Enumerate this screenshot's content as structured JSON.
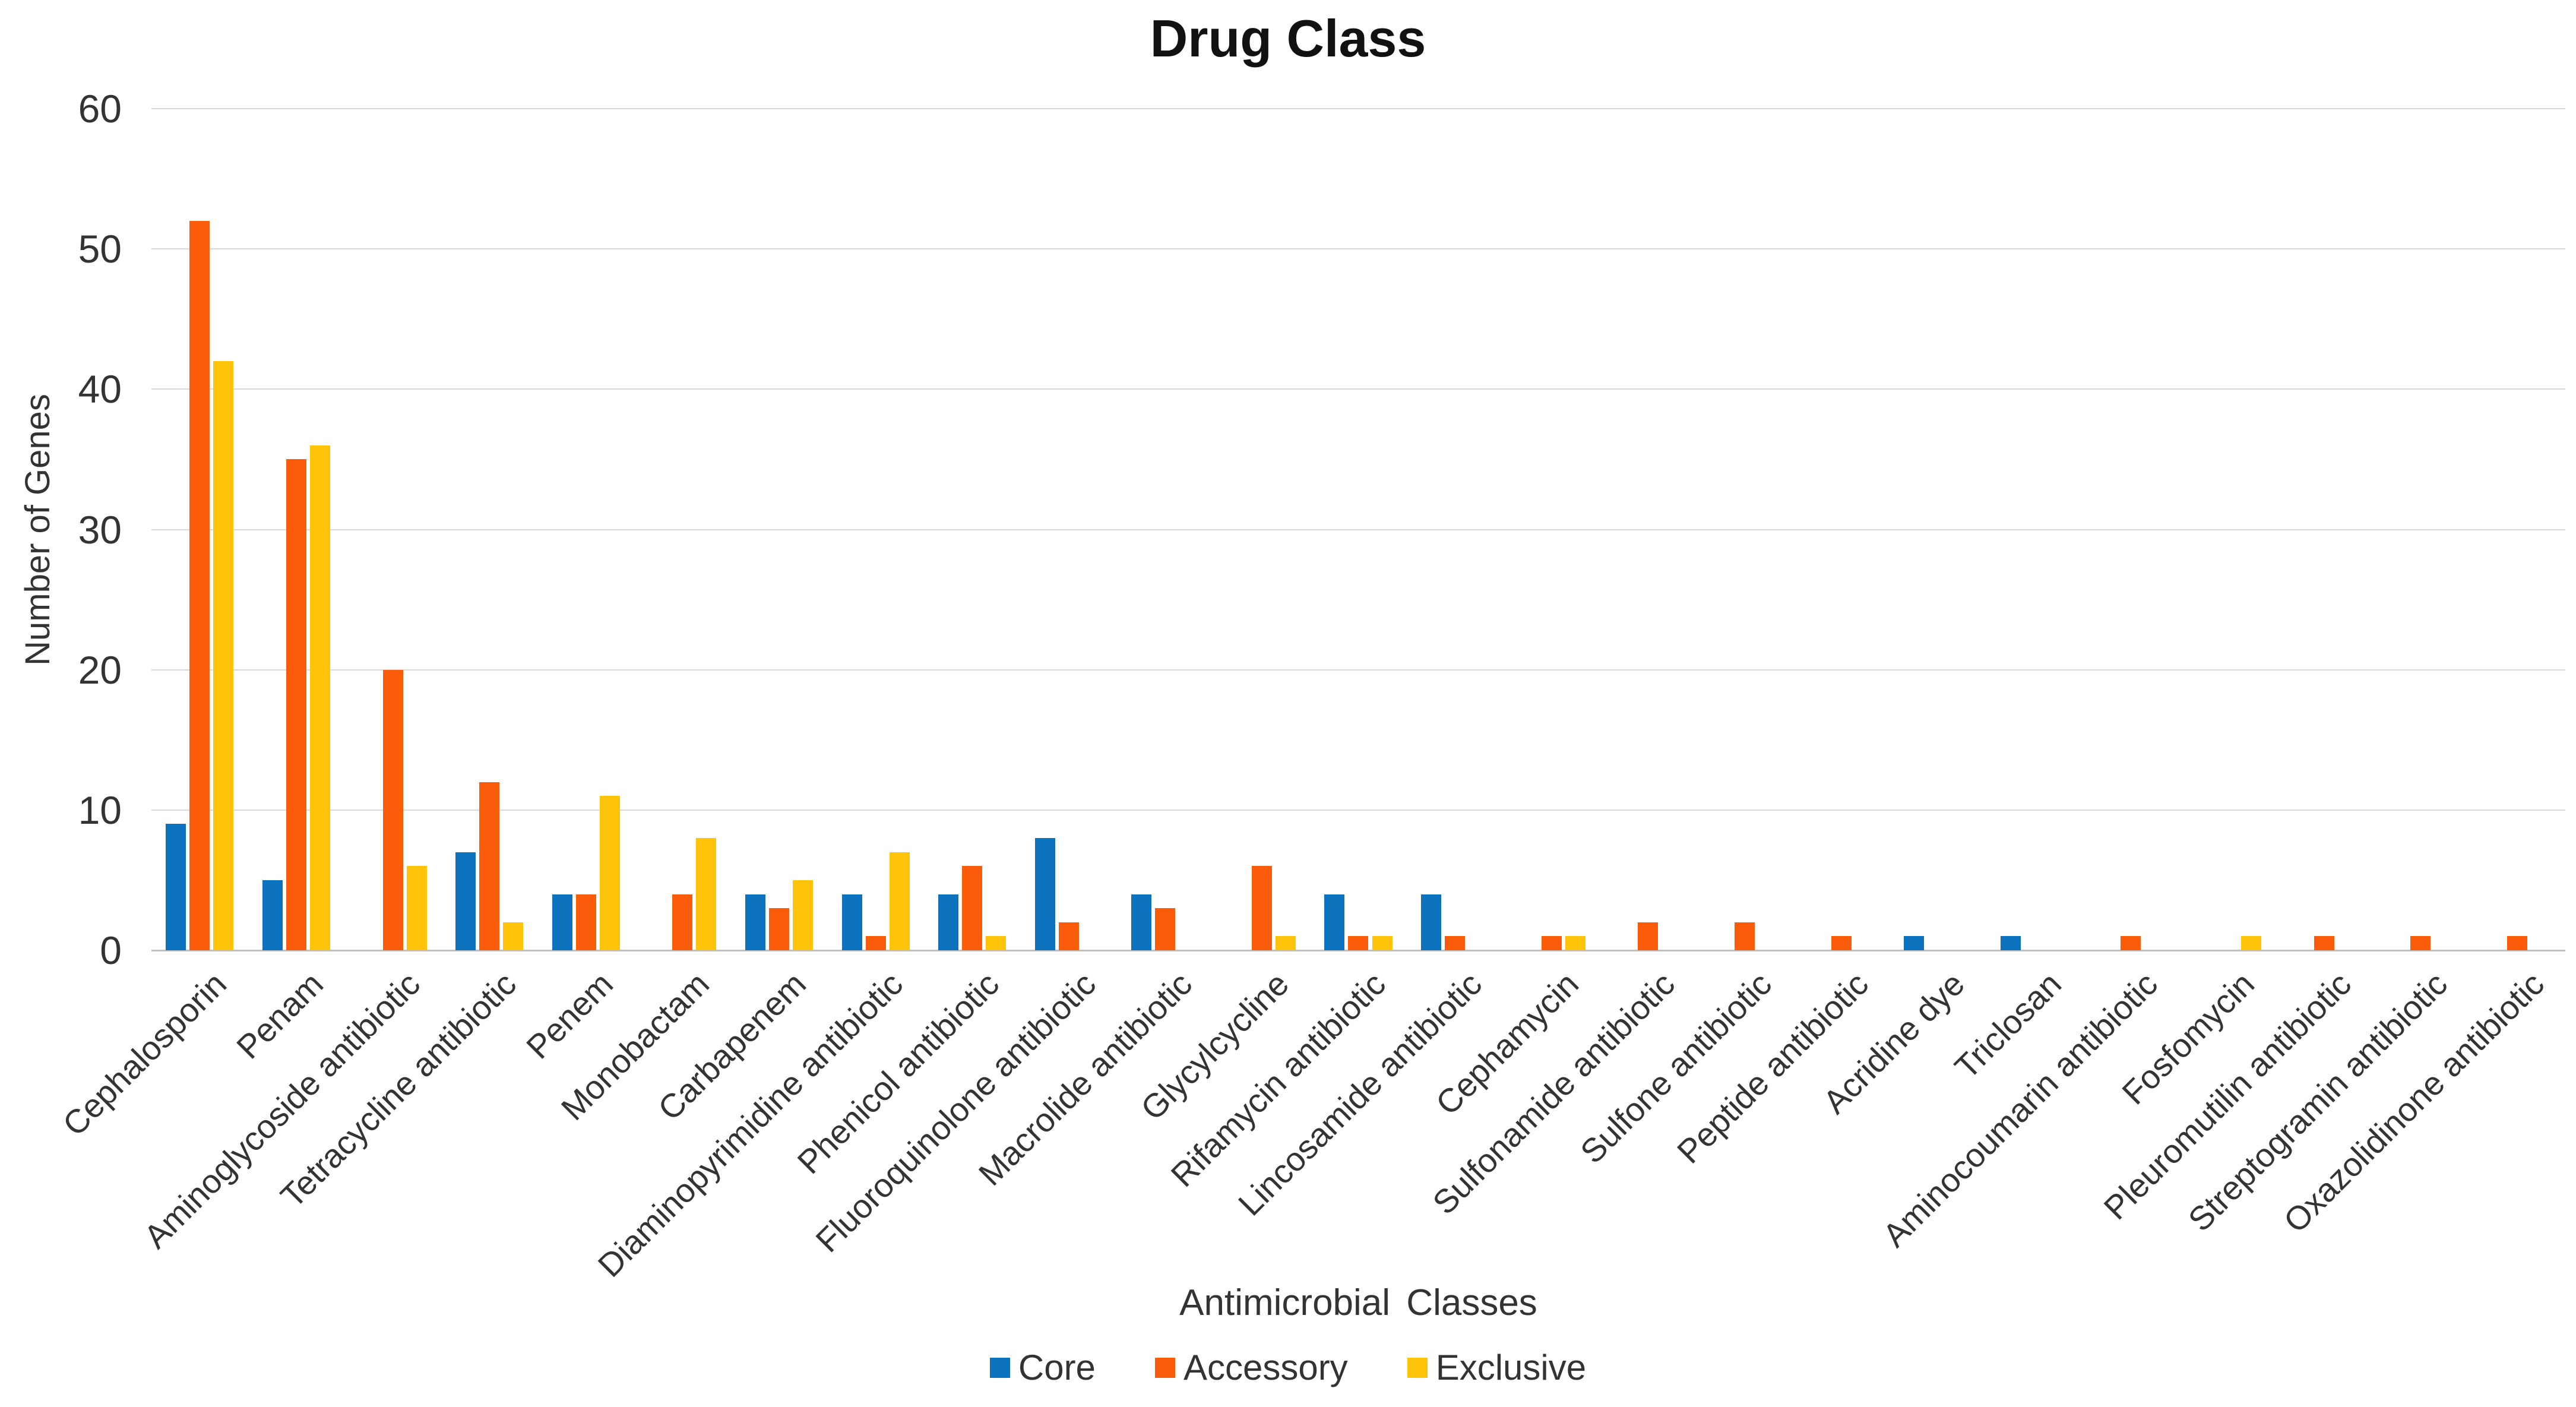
{
  "title": "Drug Class",
  "y_axis": {
    "label": "Number of Genes"
  },
  "x_axis": {
    "label": "Antimicrobial Classes"
  },
  "colors": {
    "core": "#0c72bd",
    "accessory": "#fb5c09",
    "exclusive": "#ffc40a",
    "gridline": "#dadada",
    "axis_line": "#c1c1c1",
    "text": "#333333",
    "title_text": "#111111"
  },
  "chart_data": {
    "type": "bar",
    "title": "Drug Class",
    "xlabel": "Antimicrobial Classes",
    "ylabel": "Number of Genes",
    "ylim": [
      0,
      60
    ],
    "ytick_interval": 10,
    "yticks": [
      0,
      10,
      20,
      30,
      40,
      50,
      60
    ],
    "grid": "horizontal",
    "legend_position": "bottom",
    "categories": [
      "Cephalosporin",
      "Penam",
      "Aminoglycoside antibiotic",
      "Tetracycline antibiotic",
      "Penem",
      "Monobactam",
      "Carbapenem",
      "Diaminopyrimidine antibiotic",
      "Phenicol antibiotic",
      "Fluoroquinolone antibiotic",
      "Macrolide antibiotic",
      "Glycylcycline",
      "Rifamycin antibiotic",
      "Lincosamide antibiotic",
      "Cephamycin",
      "Sulfonamide antibiotic",
      "Sulfone antibiotic",
      "Peptide antibiotic",
      "Acridine dye",
      "Triclosan",
      "Aminocoumarin antibiotic",
      "Fosfomycin",
      "Pleuromutilin antibiotic",
      "Streptogramin antibiotic",
      "Oxazolidinone antibiotic"
    ],
    "series": [
      {
        "name": "Core",
        "color": "#0c72bd",
        "values": [
          9,
          5,
          0,
          7,
          4,
          0,
          4,
          4,
          4,
          8,
          4,
          0,
          4,
          4,
          0,
          0,
          0,
          0,
          1,
          1,
          0,
          0,
          0,
          0,
          0
        ]
      },
      {
        "name": "Accessory",
        "color": "#fb5c09",
        "values": [
          52,
          35,
          20,
          12,
          4,
          4,
          3,
          1,
          6,
          2,
          3,
          6,
          1,
          1,
          1,
          2,
          2,
          1,
          0,
          0,
          1,
          0,
          1,
          1,
          1
        ]
      },
      {
        "name": "Exclusive",
        "color": "#ffc40a",
        "values": [
          42,
          36,
          6,
          2,
          11,
          8,
          5,
          7,
          1,
          0,
          0,
          1,
          1,
          0,
          1,
          0,
          0,
          0,
          0,
          0,
          0,
          1,
          0,
          0,
          0
        ]
      }
    ]
  }
}
